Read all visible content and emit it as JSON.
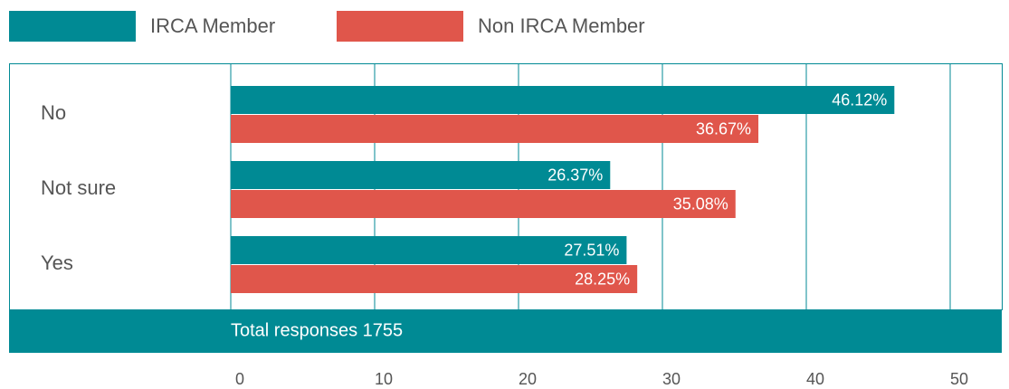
{
  "chart_data": {
    "type": "bar",
    "orientation": "horizontal",
    "categories": [
      "No",
      "Not sure",
      "Yes"
    ],
    "series": [
      {
        "name": "IRCA Member",
        "color": "#008a94",
        "values": [
          46.12,
          26.37,
          27.51
        ],
        "value_labels": [
          "46.12%",
          "26.37%",
          "27.51%"
        ]
      },
      {
        "name": "Non IRCA Member",
        "color": "#e0564b",
        "values": [
          36.67,
          35.08,
          28.25
        ],
        "value_labels": [
          "36.67%",
          "35.08%",
          "28.25%"
        ]
      }
    ],
    "footer": "Total responses 1755",
    "xlim": [
      0,
      50
    ],
    "xticks": [
      0,
      10,
      20,
      30,
      40,
      50
    ],
    "grid": true,
    "legend": "top-left"
  }
}
